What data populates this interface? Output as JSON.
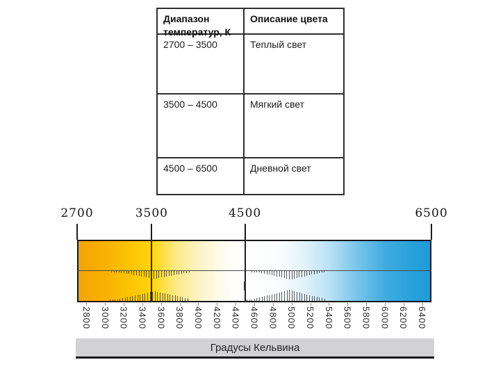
{
  "table": {
    "headers": [
      "Диапазон температур, К",
      "Описание цвета"
    ],
    "rows": [
      {
        "range": "2700 – 3500",
        "description": "Теплый свет"
      },
      {
        "range": "3500 – 4500",
        "description": "Мягкий свет"
      },
      {
        "range": "4500 – 6500",
        "description": "Дневной свет"
      }
    ]
  },
  "scale": {
    "kelvin_min": 2700,
    "kelvin_max": 6500,
    "top_markers": [
      2700,
      3500,
      4500,
      6500
    ],
    "bottom_labels": [
      2800,
      3000,
      3200,
      3400,
      3600,
      3800,
      4000,
      4200,
      4400,
      4600,
      4800,
      5000,
      5200,
      5400,
      5600,
      5800,
      6000,
      6200,
      6400
    ],
    "axis_title": "Градусы Кельвина",
    "gradient_stops": [
      {
        "pos": 0,
        "color": "#F3A404"
      },
      {
        "pos": 7,
        "color": "#F8B002"
      },
      {
        "pos": 15,
        "color": "#FDC503"
      },
      {
        "pos": 21,
        "color": "#FFD60E"
      },
      {
        "pos": 27,
        "color": "#FCE87E"
      },
      {
        "pos": 33,
        "color": "#FBF2BC"
      },
      {
        "pos": 40,
        "color": "#FEFBEA"
      },
      {
        "pos": 46,
        "color": "#FFFFFF"
      },
      {
        "pos": 57,
        "color": "#FBFDFE"
      },
      {
        "pos": 64,
        "color": "#E3F2FB"
      },
      {
        "pos": 71,
        "color": "#BCE2F6"
      },
      {
        "pos": 79,
        "color": "#7AC6EB"
      },
      {
        "pos": 87,
        "color": "#41ADE0"
      },
      {
        "pos": 94,
        "color": "#2AA2DB"
      },
      {
        "pos": 100,
        "color": "#1F9BD7"
      }
    ]
  },
  "colors": {
    "warm_end": "#F3A404",
    "cool_end": "#1F9BD7",
    "axis_bar_bg": "#D2D2D4",
    "line": "#1C1C1C"
  }
}
